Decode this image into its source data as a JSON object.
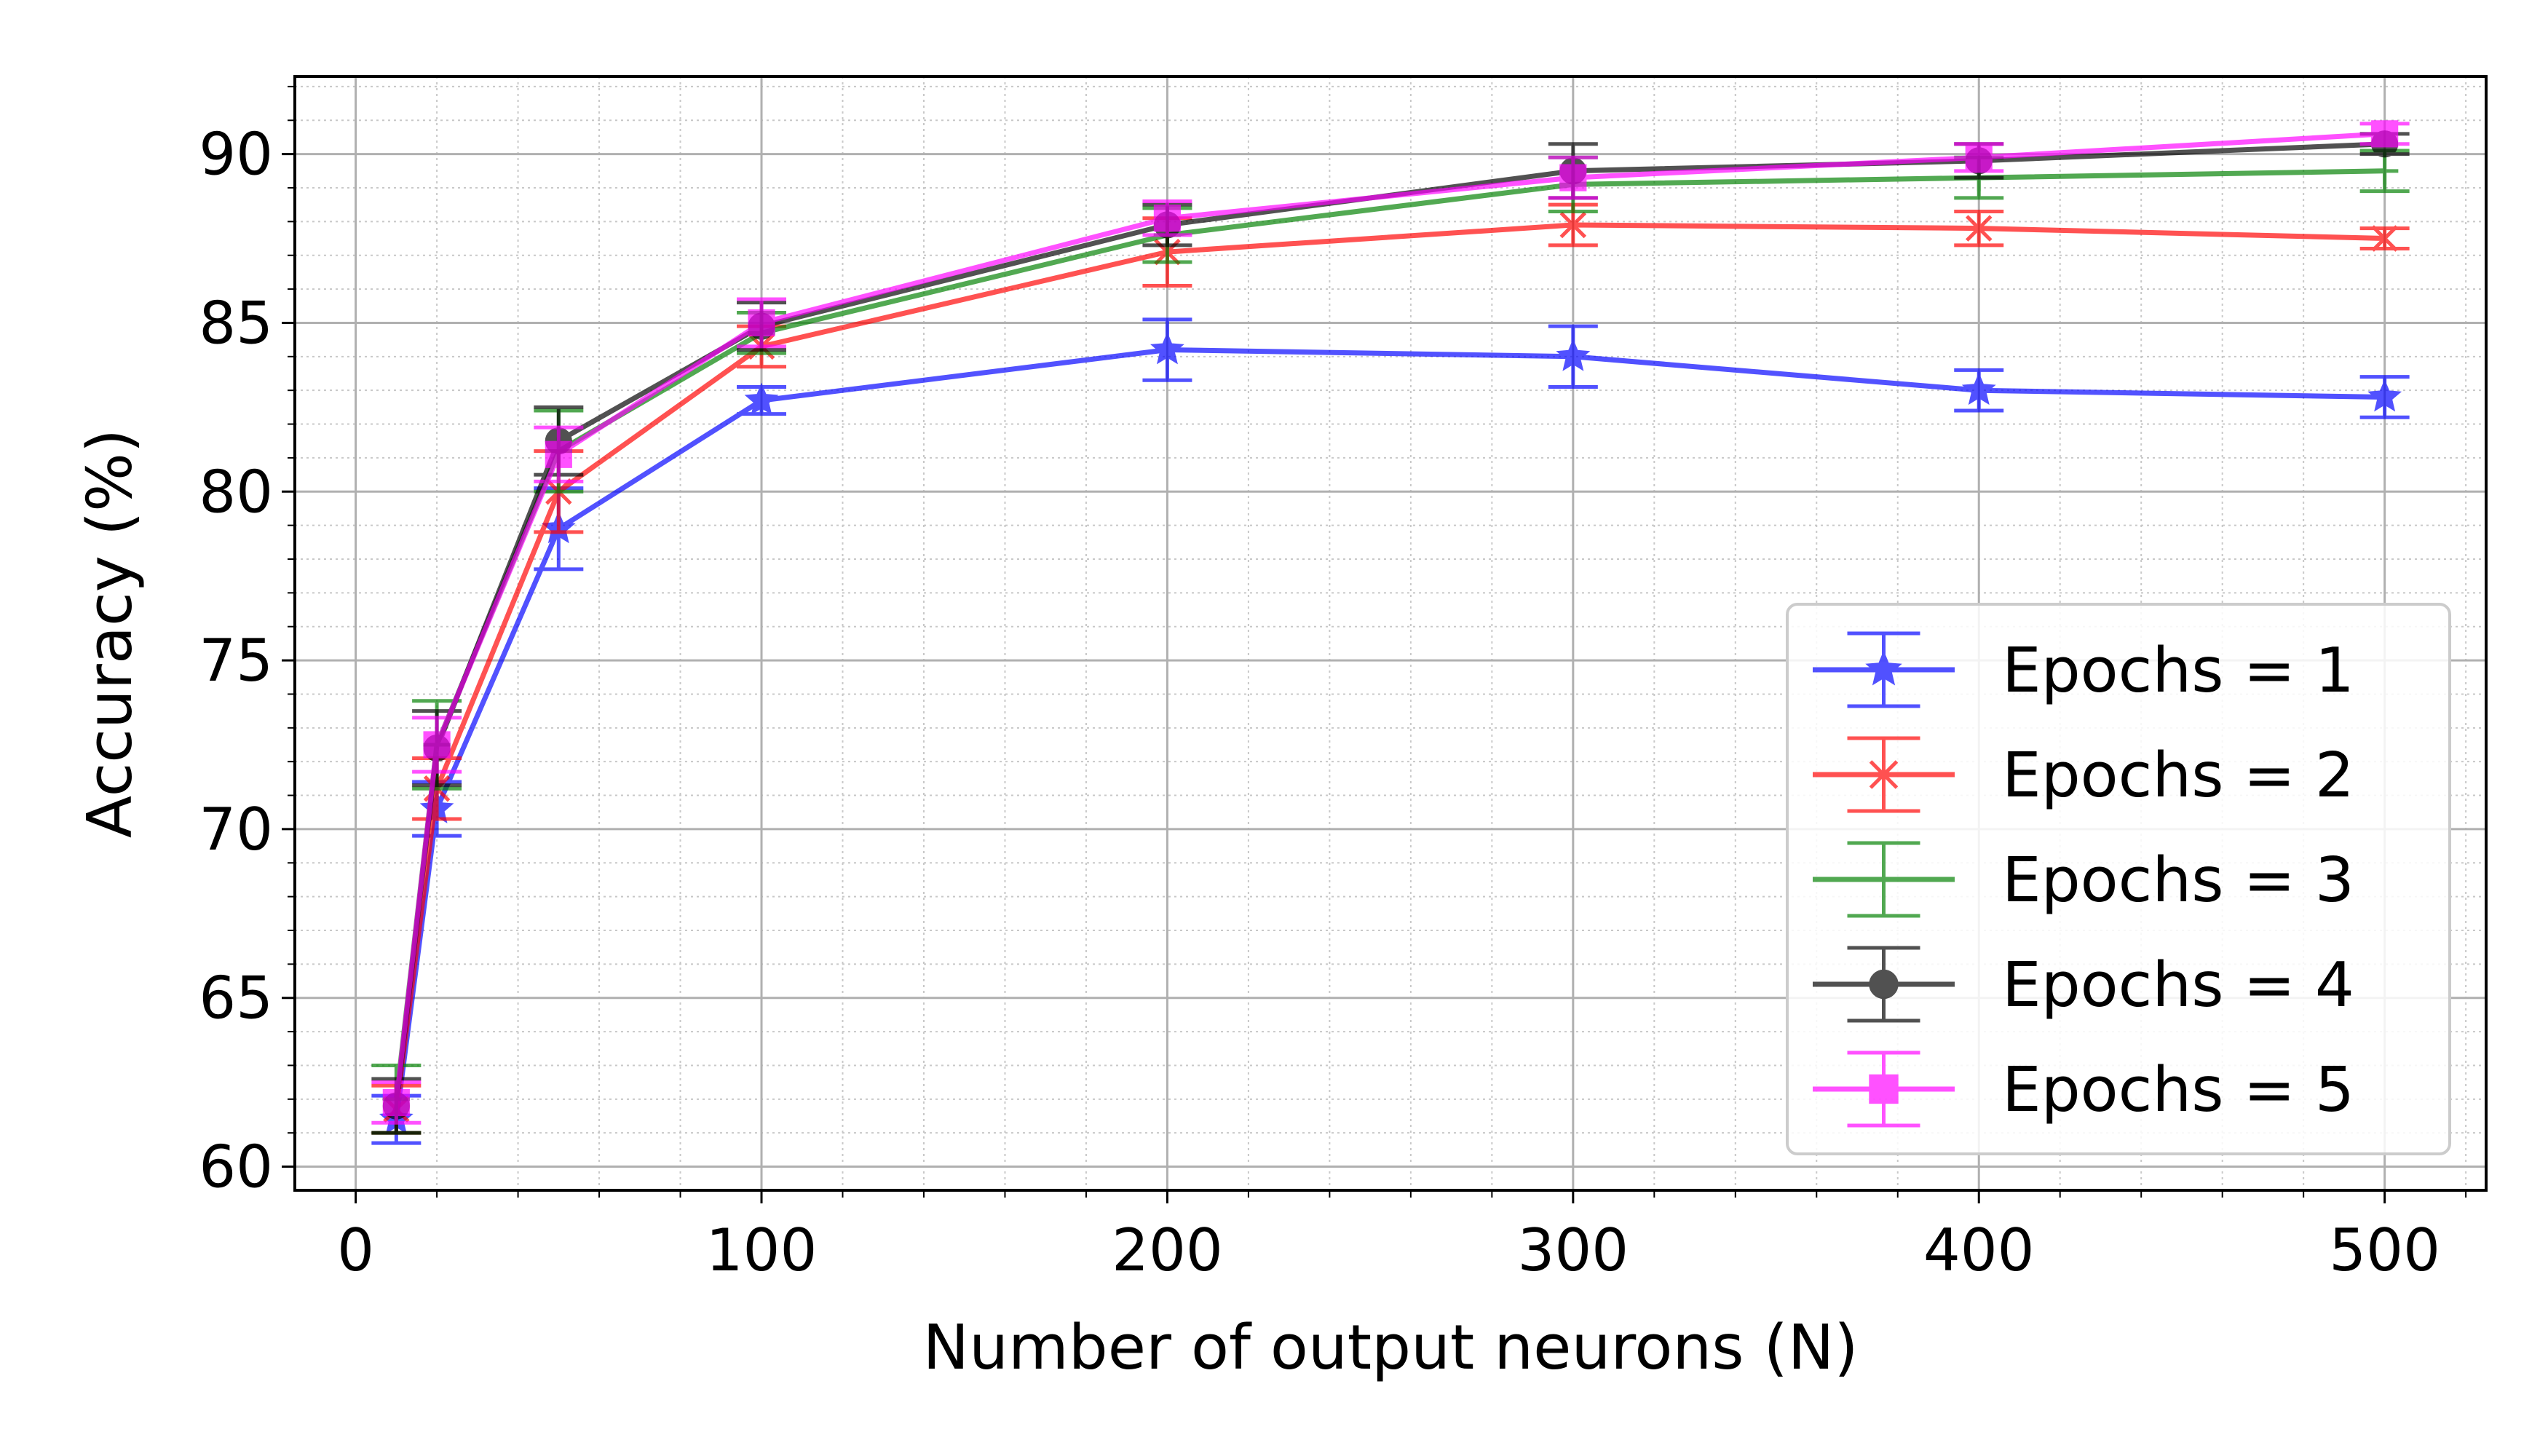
{
  "chart_data": {
    "type": "line",
    "title": "",
    "xlabel": "Number of output neurons (N)",
    "ylabel": "Accuracy (%)",
    "xlim": [
      -15,
      525
    ],
    "ylim": [
      59.3,
      92.3
    ],
    "xticks": [
      "0",
      "100",
      "200",
      "300",
      "400",
      "500"
    ],
    "yticks": [
      "60",
      "65",
      "70",
      "75",
      "80",
      "85",
      "90"
    ],
    "grid": true,
    "minor_grid": true,
    "legend_position": "lower-right",
    "error_bars": true,
    "x": [
      10,
      20,
      50,
      100,
      200,
      300,
      400,
      500
    ],
    "series": [
      {
        "name": "Epochs = 1",
        "color": "#0000ff",
        "marker": "star",
        "values": [
          61.4,
          70.6,
          78.9,
          82.7,
          84.2,
          84.0,
          83.0,
          82.8
        ],
        "errors": [
          0.7,
          0.8,
          1.2,
          0.4,
          0.9,
          0.9,
          0.6,
          0.6
        ]
      },
      {
        "name": "Epochs = 2",
        "color": "#ff0000",
        "marker": "x",
        "values": [
          61.7,
          71.2,
          80.0,
          84.3,
          87.1,
          87.9,
          87.8,
          87.5
        ],
        "errors": [
          0.7,
          0.9,
          1.2,
          0.6,
          1.0,
          0.6,
          0.5,
          0.3
        ]
      },
      {
        "name": "Epochs = 3",
        "color": "#008000",
        "marker": "plus",
        "values": [
          62.0,
          72.5,
          81.2,
          84.7,
          87.6,
          89.1,
          89.3,
          89.5
        ],
        "errors": [
          1.0,
          1.3,
          1.2,
          0.6,
          0.8,
          0.8,
          0.6,
          0.6
        ]
      },
      {
        "name": "Epochs = 4",
        "color": "#000000",
        "marker": "circle",
        "values": [
          61.8,
          72.4,
          81.5,
          84.9,
          87.9,
          89.5,
          89.8,
          90.3
        ],
        "errors": [
          0.8,
          1.1,
          1.0,
          0.7,
          0.6,
          0.8,
          0.5,
          0.3
        ]
      },
      {
        "name": "Epochs = 5",
        "color": "#ff00ff",
        "marker": "square",
        "values": [
          61.9,
          72.5,
          81.1,
          85.0,
          88.1,
          89.3,
          89.9,
          90.6
        ],
        "errors": [
          0.6,
          0.8,
          0.8,
          0.7,
          0.5,
          0.6,
          0.4,
          0.3
        ]
      }
    ]
  }
}
